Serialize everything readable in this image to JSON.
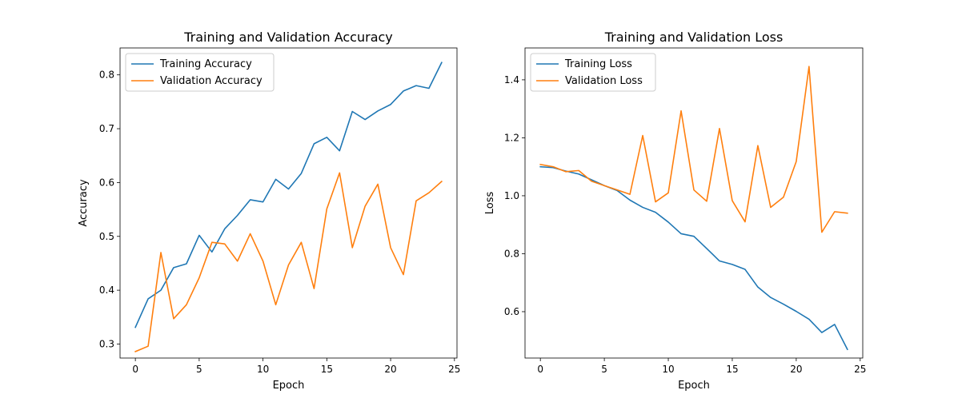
{
  "chart_data": [
    {
      "type": "line",
      "title": "Training and Validation Accuracy",
      "xlabel": "Epoch",
      "ylabel": "Accuracy",
      "xlim": [
        -1.2,
        25.2
      ],
      "ylim": [
        0.274,
        0.85
      ],
      "xticks": [
        0,
        5,
        10,
        15,
        20,
        25
      ],
      "yticks": [
        0.3,
        0.4,
        0.5,
        0.6,
        0.7,
        0.8
      ],
      "ytick_decimals": 1,
      "grid": false,
      "legend": "upper-left",
      "x": [
        0,
        1,
        2,
        3,
        4,
        5,
        6,
        7,
        8,
        9,
        10,
        11,
        12,
        13,
        14,
        15,
        16,
        17,
        18,
        19,
        20,
        21,
        22,
        23,
        24
      ],
      "series": [
        {
          "name": "Training Accuracy",
          "color": "#1f77b4",
          "values": [
            0.331,
            0.384,
            0.4,
            0.442,
            0.449,
            0.502,
            0.471,
            0.514,
            0.539,
            0.568,
            0.564,
            0.606,
            0.588,
            0.617,
            0.672,
            0.684,
            0.659,
            0.732,
            0.717,
            0.733,
            0.745,
            0.77,
            0.78,
            0.775,
            0.823
          ]
        },
        {
          "name": "Validation Accuracy",
          "color": "#ff7f0e",
          "values": [
            0.286,
            0.296,
            0.47,
            0.347,
            0.373,
            0.423,
            0.489,
            0.486,
            0.454,
            0.505,
            0.454,
            0.373,
            0.447,
            0.489,
            0.403,
            0.551,
            0.618,
            0.479,
            0.556,
            0.597,
            0.479,
            0.429,
            0.566,
            0.581,
            0.602
          ]
        }
      ]
    },
    {
      "type": "line",
      "title": "Training and Validation Loss",
      "xlabel": "Epoch",
      "ylabel": "Loss",
      "xlim": [
        -1.2,
        25.2
      ],
      "ylim": [
        0.44,
        1.51
      ],
      "xticks": [
        0,
        5,
        10,
        15,
        20,
        25
      ],
      "yticks": [
        0.6,
        0.8,
        1.0,
        1.2,
        1.4
      ],
      "ytick_decimals": 1,
      "grid": false,
      "legend": "upper-left",
      "x": [
        0,
        1,
        2,
        3,
        4,
        5,
        6,
        7,
        8,
        9,
        10,
        11,
        12,
        13,
        14,
        15,
        16,
        17,
        18,
        19,
        20,
        21,
        22,
        23,
        24
      ],
      "series": [
        {
          "name": "Training Loss",
          "color": "#1f77b4",
          "values": [
            1.1,
            1.097,
            1.085,
            1.075,
            1.055,
            1.035,
            1.018,
            0.985,
            0.96,
            0.943,
            0.909,
            0.869,
            0.86,
            0.818,
            0.775,
            0.763,
            0.746,
            0.685,
            0.649,
            0.626,
            0.601,
            0.574,
            0.528,
            0.556,
            0.47
          ]
        },
        {
          "name": "Validation Loss",
          "color": "#ff7f0e",
          "values": [
            1.108,
            1.1,
            1.083,
            1.087,
            1.05,
            1.035,
            1.02,
            1.005,
            1.208,
            0.979,
            1.01,
            1.293,
            1.02,
            0.981,
            1.232,
            0.983,
            0.91,
            1.173,
            0.96,
            0.995,
            1.118,
            1.446,
            0.874,
            0.945,
            0.94
          ]
        }
      ]
    }
  ]
}
